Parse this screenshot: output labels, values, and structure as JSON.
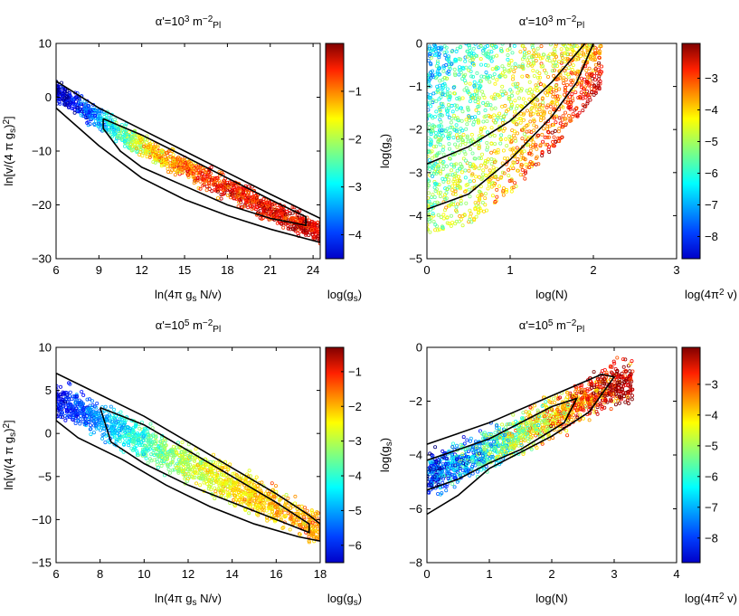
{
  "chart_data": [
    {
      "type": "scatter",
      "title": "α'=10",
      "title_exp": "3",
      "title_unit": "m",
      "title_unit_exp": "−2",
      "title_unit_sub": "Pl",
      "xlabel": "ln(4π g",
      "xlabel_sub": "s",
      "xlabel_tail": " N/v)",
      "ylabel": "ln[v/(4 π g",
      "ylabel_sub": "s",
      "ylabel_tail": ")",
      "ylabel_exp": "2",
      "ylabel_close": "]",
      "xlim": [
        6,
        24.5
      ],
      "ylim": [
        -30,
        10
      ],
      "xticks": [
        6,
        9,
        12,
        15,
        18,
        21,
        24
      ],
      "yticks": [
        10,
        0,
        -10,
        -20,
        -30
      ],
      "colorbar_label": "log(g",
      "colorbar_label_sub": "s",
      "colorbar_label_tail": ")",
      "colorbar_range": [
        -4.5,
        0
      ],
      "colorbar_ticks": [
        -1,
        -2,
        -3,
        -4
      ],
      "contours": [
        [
          [
            6,
            3
          ],
          [
            9,
            -2
          ],
          [
            12,
            -6
          ],
          [
            15,
            -10
          ],
          [
            18,
            -14
          ],
          [
            21,
            -18
          ],
          [
            24.5,
            -22.5
          ],
          [
            24.5,
            -27
          ],
          [
            21,
            -24.5
          ],
          [
            18,
            -22
          ],
          [
            15,
            -19
          ],
          [
            12,
            -15
          ],
          [
            9,
            -9
          ],
          [
            6,
            -2
          ],
          [
            6,
            3
          ]
        ],
        [
          [
            9.3,
            -4
          ],
          [
            12,
            -7
          ],
          [
            15,
            -11
          ],
          [
            18,
            -15
          ],
          [
            21,
            -19
          ],
          [
            23.5,
            -22.2
          ],
          [
            23.5,
            -23.8
          ],
          [
            21,
            -22.5
          ],
          [
            18,
            -20
          ],
          [
            15,
            -16.5
          ],
          [
            12,
            -13
          ],
          [
            10.5,
            -10
          ],
          [
            9.3,
            -5.8
          ],
          [
            9.3,
            -4
          ]
        ]
      ],
      "point_cloud": {
        "count": 1400,
        "x_range": [
          6,
          24.5
        ],
        "band_center": [
          [
            6,
            1
          ],
          [
            9,
            -4
          ],
          [
            12,
            -9
          ],
          [
            15,
            -13
          ],
          [
            18,
            -17
          ],
          [
            21,
            -21
          ],
          [
            24.5,
            -25
          ]
        ],
        "band_half_width": 2.5,
        "color_trend": [
          [
            6,
            -4.3
          ],
          [
            9,
            -3.2
          ],
          [
            12,
            -1.8
          ],
          [
            15,
            -1.0
          ],
          [
            18,
            -0.6
          ],
          [
            24.5,
            -0.4
          ]
        ]
      }
    },
    {
      "type": "scatter",
      "title": "α'=10",
      "title_exp": "3",
      "title_unit": "m",
      "title_unit_exp": "−2",
      "title_unit_sub": "Pl",
      "xlabel": "log(N)",
      "ylabel": "log(g",
      "ylabel_sub": "s",
      "ylabel_tail": ")",
      "xlim": [
        0,
        3
      ],
      "ylim": [
        -5,
        0
      ],
      "xticks": [
        0,
        1,
        2,
        3
      ],
      "yticks": [
        0,
        -1,
        -2,
        -3,
        -4,
        -5
      ],
      "colorbar_label": "log(4π",
      "colorbar_label_exp": "2",
      "colorbar_label_tail": " v)",
      "colorbar_range": [
        -8.7,
        -1.9
      ],
      "colorbar_ticks": [
        -3,
        -4,
        -5,
        -6,
        -7,
        -8
      ],
      "contours": [
        [
          [
            0,
            -2.8
          ],
          [
            0.5,
            -2.4
          ],
          [
            1,
            -1.8
          ],
          [
            1.5,
            -0.9
          ],
          [
            1.9,
            0
          ]
        ],
        [
          [
            0,
            -3.85
          ],
          [
            0.5,
            -3.5
          ],
          [
            1,
            -2.7
          ],
          [
            1.5,
            -1.7
          ],
          [
            1.8,
            -0.9
          ],
          [
            2.0,
            0
          ]
        ]
      ],
      "point_cloud": {
        "count": 1600,
        "x_range": [
          0,
          2.1
        ],
        "upper_bound": [
          [
            0,
            0
          ],
          [
            2.1,
            0
          ]
        ],
        "lower_bound": [
          [
            0,
            -4.4
          ],
          [
            0.5,
            -4.2
          ],
          [
            1,
            -3.5
          ],
          [
            1.5,
            -2.5
          ],
          [
            2.1,
            -1
          ]
        ],
        "color_trend": "red at lower-right, green-yellow at upper-left"
      }
    },
    {
      "type": "scatter",
      "title": "α'=10",
      "title_exp": "5",
      "title_unit": "m",
      "title_unit_exp": "−2",
      "title_unit_sub": "Pl",
      "xlabel": "ln(4π g",
      "xlabel_sub": "s",
      "xlabel_tail": " N/v)",
      "ylabel": "ln[v/(4 π g",
      "ylabel_sub": "s",
      "ylabel_tail": ")",
      "ylabel_exp": "2",
      "ylabel_close": "]",
      "xlim": [
        6,
        18
      ],
      "ylim": [
        -15,
        10
      ],
      "xticks": [
        6,
        8,
        10,
        12,
        14,
        16,
        18
      ],
      "yticks": [
        10,
        5,
        0,
        -5,
        -10,
        -15
      ],
      "colorbar_label": "log(g",
      "colorbar_label_sub": "s",
      "colorbar_label_tail": ")",
      "colorbar_range": [
        -6.5,
        -0.3
      ],
      "colorbar_ticks": [
        -1,
        -2,
        -3,
        -4,
        -5,
        -6
      ],
      "contours": [
        [
          [
            6,
            7
          ],
          [
            8,
            4.5
          ],
          [
            10,
            2
          ],
          [
            12,
            -1
          ],
          [
            14,
            -4
          ],
          [
            16,
            -7
          ],
          [
            17.5,
            -9.5
          ],
          [
            18,
            -10.5
          ],
          [
            18,
            -12.5
          ],
          [
            17,
            -12
          ],
          [
            15,
            -10.5
          ],
          [
            13,
            -8.5
          ],
          [
            11,
            -6
          ],
          [
            9,
            -3
          ],
          [
            7,
            -0.5
          ],
          [
            6,
            1.5
          ],
          [
            6,
            7
          ]
        ],
        [
          [
            8,
            3
          ],
          [
            10,
            1
          ],
          [
            12,
            -2
          ],
          [
            14,
            -5
          ],
          [
            16,
            -8
          ],
          [
            17.5,
            -10.5
          ],
          [
            17.5,
            -11.5
          ],
          [
            16,
            -10
          ],
          [
            14,
            -8
          ],
          [
            12,
            -6
          ],
          [
            10,
            -3.5
          ],
          [
            8.5,
            -1
          ],
          [
            8,
            3
          ]
        ]
      ],
      "point_cloud": {
        "count": 1500,
        "x_range": [
          6,
          18
        ],
        "band_center": [
          [
            6,
            4
          ],
          [
            8,
            1.5
          ],
          [
            10,
            -1
          ],
          [
            12,
            -3.5
          ],
          [
            14,
            -6
          ],
          [
            16,
            -8.5
          ],
          [
            18,
            -11
          ]
        ],
        "band_half_width": 2.5,
        "color_trend": [
          [
            6,
            -5.8
          ],
          [
            8,
            -4.8
          ],
          [
            10,
            -3.8
          ],
          [
            12,
            -3
          ],
          [
            14,
            -2.5
          ],
          [
            18,
            -2
          ]
        ]
      }
    },
    {
      "type": "scatter",
      "title": "α'=10",
      "title_exp": "5",
      "title_unit": "m",
      "title_unit_exp": "−2",
      "title_unit_sub": "Pl",
      "xlabel": "log(N)",
      "ylabel": "log(g",
      "ylabel_sub": "s",
      "ylabel_tail": ")",
      "xlim": [
        0,
        4
      ],
      "ylim": [
        -8,
        0
      ],
      "xticks": [
        0,
        1,
        2,
        3,
        4
      ],
      "yticks": [
        0,
        -2,
        -4,
        -6,
        -8
      ],
      "colorbar_label": "log(4π",
      "colorbar_label_exp": "2",
      "colorbar_label_tail": " v)",
      "colorbar_range": [
        -8.8,
        -1.8
      ],
      "colorbar_ticks": [
        -3,
        -4,
        -5,
        -6,
        -7,
        -8
      ],
      "contours": [
        [
          [
            0,
            -3.6
          ],
          [
            0.5,
            -3.2
          ],
          [
            1,
            -2.8
          ],
          [
            2,
            -1.8
          ],
          [
            2.8,
            -1.0
          ],
          [
            3.0,
            -1.1
          ],
          [
            2.6,
            -2.4
          ],
          [
            2,
            -3.3
          ],
          [
            1,
            -4.5
          ],
          [
            0.5,
            -5.5
          ],
          [
            0,
            -6.2
          ]
        ],
        [
          [
            0,
            -4.2
          ],
          [
            0.5,
            -3.8
          ],
          [
            1,
            -3.4
          ],
          [
            2.0,
            -2.2
          ],
          [
            2.4,
            -1.9
          ],
          [
            2.2,
            -2.8
          ],
          [
            1.5,
            -3.8
          ],
          [
            1,
            -4.3
          ],
          [
            0.5,
            -4.9
          ],
          [
            0,
            -5.3
          ]
        ]
      ],
      "point_cloud": {
        "count": 1500,
        "x_range": [
          0,
          3.3
        ],
        "band_center": [
          [
            0,
            -4.8
          ],
          [
            1,
            -3.8
          ],
          [
            2,
            -2.6
          ],
          [
            3,
            -1.3
          ]
        ],
        "band_half_width": 0.9,
        "color_trend": "blue/green at left, red at right"
      }
    }
  ]
}
